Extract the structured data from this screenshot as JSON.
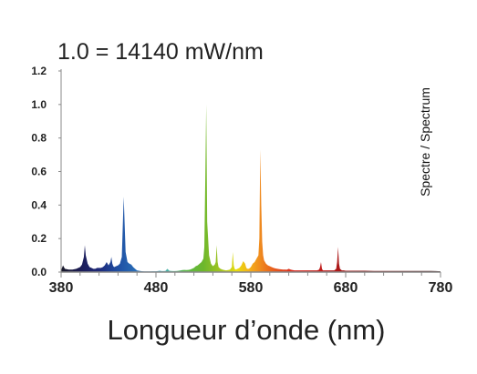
{
  "chart_data": {
    "type": "area",
    "title": "1.0 = 14140 mW/nm",
    "xlabel": "Longueur d’onde (nm)",
    "side_label": "Spectre / Spectrum",
    "xlim": [
      380,
      780
    ],
    "ylim": [
      0,
      1.2
    ],
    "x_ticks": [
      380,
      480,
      580,
      680,
      780
    ],
    "x_tick_labels": [
      "380",
      "480",
      "580",
      "680",
      "780"
    ],
    "y_ticks": [
      0,
      0.2,
      0.4,
      0.6,
      0.8,
      1.0,
      1.2
    ],
    "y_tick_labels": [
      "0.0",
      "0.2",
      "0.4",
      "0.6",
      "0.8",
      "1.0",
      "1.2"
    ],
    "grid": false,
    "series": [
      {
        "x": [
          380,
          382,
          384,
          388,
          392,
          396,
          400,
          402,
          404,
          405,
          406,
          408,
          410,
          412,
          414,
          416,
          418,
          420,
          422,
          424,
          426,
          428,
          430,
          432,
          433,
          434,
          435,
          436,
          438,
          440,
          442,
          444,
          446,
          448,
          450,
          452,
          454,
          456,
          458,
          460,
          462,
          464,
          466,
          468,
          470,
          472,
          474,
          476,
          478,
          480,
          482,
          484,
          486,
          488,
          490,
          492,
          494,
          496,
          498,
          500,
          502,
          504,
          506,
          508,
          510,
          512,
          514,
          516,
          518,
          520,
          522,
          524,
          526,
          528,
          530,
          531,
          532,
          533,
          534,
          536,
          538,
          540,
          542,
          543,
          544,
          545,
          546,
          548,
          550,
          552,
          554,
          556,
          558,
          560,
          561,
          562,
          563,
          564,
          566,
          568,
          570,
          572,
          574,
          575,
          576,
          578,
          580,
          582,
          584,
          586,
          588,
          589,
          590,
          591,
          592,
          593,
          594,
          596,
          598,
          600,
          602,
          604,
          606,
          608,
          610,
          612,
          614,
          616,
          618,
          620,
          622,
          624,
          626,
          628,
          630,
          632,
          634,
          636,
          638,
          640,
          642,
          644,
          646,
          648,
          650,
          652,
          653,
          654,
          655,
          656,
          658,
          660,
          662,
          664,
          666,
          668,
          670,
          671,
          672,
          673,
          674,
          676,
          678,
          680,
          684,
          690,
          700,
          710,
          720,
          730,
          740,
          750,
          760,
          770,
          775,
          780
        ],
        "y": [
          0.01,
          0.04,
          0.02,
          0.015,
          0.015,
          0.02,
          0.03,
          0.045,
          0.09,
          0.16,
          0.1,
          0.05,
          0.03,
          0.025,
          0.02,
          0.02,
          0.025,
          0.025,
          0.025,
          0.03,
          0.04,
          0.06,
          0.04,
          0.06,
          0.09,
          0.05,
          0.035,
          0.03,
          0.035,
          0.04,
          0.05,
          0.09,
          0.45,
          0.12,
          0.06,
          0.05,
          0.045,
          0.03,
          0.02,
          0.01,
          0.008,
          0.006,
          0.005,
          0.004,
          0.004,
          0.004,
          0.004,
          0.005,
          0.005,
          0.005,
          0.006,
          0.008,
          0.006,
          0.006,
          0.007,
          0.02,
          0.008,
          0.007,
          0.006,
          0.006,
          0.007,
          0.008,
          0.01,
          0.012,
          0.013,
          0.012,
          0.013,
          0.015,
          0.02,
          0.025,
          0.035,
          0.04,
          0.05,
          0.06,
          0.08,
          0.15,
          0.55,
          1.0,
          0.3,
          0.1,
          0.05,
          0.035,
          0.045,
          0.06,
          0.16,
          0.06,
          0.03,
          0.02,
          0.015,
          0.012,
          0.01,
          0.012,
          0.015,
          0.03,
          0.12,
          0.04,
          0.02,
          0.015,
          0.02,
          0.025,
          0.04,
          0.065,
          0.05,
          0.03,
          0.02,
          0.02,
          0.03,
          0.05,
          0.06,
          0.08,
          0.1,
          0.2,
          0.73,
          0.4,
          0.18,
          0.1,
          0.07,
          0.05,
          0.04,
          0.035,
          0.03,
          0.025,
          0.022,
          0.02,
          0.018,
          0.016,
          0.015,
          0.015,
          0.014,
          0.02,
          0.015,
          0.012,
          0.01,
          0.01,
          0.01,
          0.01,
          0.01,
          0.01,
          0.01,
          0.01,
          0.01,
          0.01,
          0.01,
          0.01,
          0.01,
          0.015,
          0.03,
          0.06,
          0.02,
          0.01,
          0.01,
          0.01,
          0.01,
          0.01,
          0.01,
          0.01,
          0.02,
          0.06,
          0.15,
          0.05,
          0.02,
          0.01,
          0.01,
          0.008,
          0.008,
          0.008,
          0.008,
          0.007,
          0.007,
          0.007,
          0.007,
          0.007,
          0.007,
          0.007,
          0.006,
          0.005
        ]
      }
    ],
    "colors": {
      "axis": "#8a8a8a",
      "text": "#222222",
      "spectrum_stops": [
        {
          "nm": 380,
          "color": "#1a1a2a"
        },
        {
          "nm": 400,
          "color": "#1c1c55"
        },
        {
          "nm": 420,
          "color": "#1e2a7a"
        },
        {
          "nm": 440,
          "color": "#1f4fa3"
        },
        {
          "nm": 460,
          "color": "#2a6fb8"
        },
        {
          "nm": 480,
          "color": "#43a3c8"
        },
        {
          "nm": 495,
          "color": "#4fb8a0"
        },
        {
          "nm": 510,
          "color": "#59b84a"
        },
        {
          "nm": 530,
          "color": "#6db72c"
        },
        {
          "nm": 550,
          "color": "#a8c620"
        },
        {
          "nm": 565,
          "color": "#e8dc10"
        },
        {
          "nm": 578,
          "color": "#f4b21a"
        },
        {
          "nm": 590,
          "color": "#ef8a1f"
        },
        {
          "nm": 605,
          "color": "#e65a1e"
        },
        {
          "nm": 625,
          "color": "#d9281e"
        },
        {
          "nm": 660,
          "color": "#bb1a1a"
        },
        {
          "nm": 700,
          "color": "#8a1414"
        },
        {
          "nm": 780,
          "color": "#3a1212"
        }
      ]
    }
  }
}
